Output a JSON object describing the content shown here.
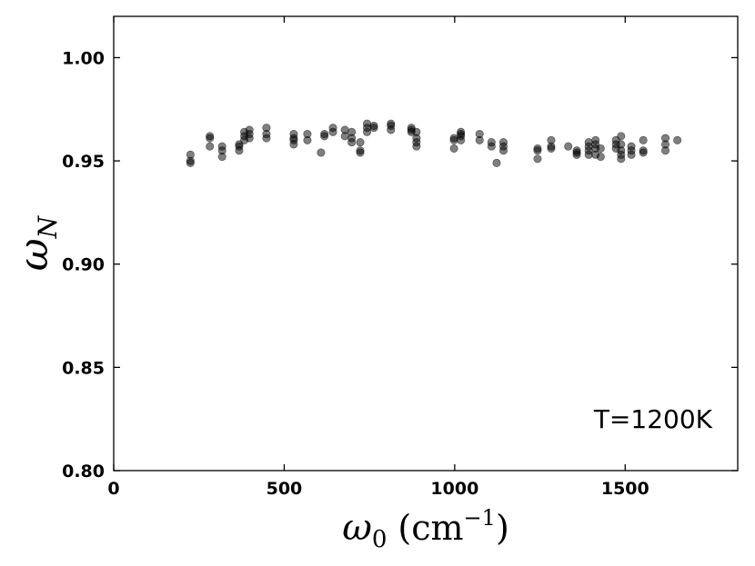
{
  "chart_data": {
    "type": "scatter",
    "title": "",
    "xlabel": "ω₀ (cm⁻¹)",
    "ylabel": "ω_N",
    "xlim": [
      0,
      1830
    ],
    "ylim": [
      0.8,
      1.02
    ],
    "xticks": [
      0,
      500,
      1000,
      1500
    ],
    "yticks": [
      0.8,
      0.85,
      0.9,
      0.95,
      1.0
    ],
    "xtick_labels": [
      "0",
      "500",
      "1000",
      "1500"
    ],
    "ytick_labels": [
      "0.80",
      "0.85",
      "0.90",
      "0.95",
      "1.00"
    ],
    "annotation": "T=1200K",
    "annotation_position": "bottom-right",
    "grid": false,
    "marker_color": "#000000",
    "marker_opacity": 0.5,
    "points": [
      [
        225,
        0.953
      ],
      [
        225,
        0.95
      ],
      [
        225,
        0.949
      ],
      [
        282,
        0.962
      ],
      [
        282,
        0.961
      ],
      [
        282,
        0.957
      ],
      [
        318,
        0.957
      ],
      [
        318,
        0.955
      ],
      [
        318,
        0.952
      ],
      [
        368,
        0.958
      ],
      [
        368,
        0.957
      ],
      [
        368,
        0.955
      ],
      [
        383,
        0.964
      ],
      [
        383,
        0.962
      ],
      [
        383,
        0.96
      ],
      [
        398,
        0.965
      ],
      [
        398,
        0.963
      ],
      [
        398,
        0.961
      ],
      [
        448,
        0.966
      ],
      [
        448,
        0.963
      ],
      [
        448,
        0.961
      ],
      [
        528,
        0.963
      ],
      [
        528,
        0.961
      ],
      [
        528,
        0.96
      ],
      [
        528,
        0.958
      ],
      [
        568,
        0.963
      ],
      [
        568,
        0.96
      ],
      [
        608,
        0.954
      ],
      [
        618,
        0.963
      ],
      [
        618,
        0.962
      ],
      [
        643,
        0.966
      ],
      [
        643,
        0.964
      ],
      [
        678,
        0.965
      ],
      [
        678,
        0.962
      ],
      [
        698,
        0.964
      ],
      [
        698,
        0.961
      ],
      [
        698,
        0.959
      ],
      [
        723,
        0.959
      ],
      [
        723,
        0.955
      ],
      [
        723,
        0.954
      ],
      [
        743,
        0.968
      ],
      [
        743,
        0.966
      ],
      [
        743,
        0.964
      ],
      [
        763,
        0.967
      ],
      [
        763,
        0.966
      ],
      [
        813,
        0.968
      ],
      [
        813,
        0.967
      ],
      [
        813,
        0.965
      ],
      [
        873,
        0.966
      ],
      [
        873,
        0.965
      ],
      [
        873,
        0.964
      ],
      [
        888,
        0.964
      ],
      [
        888,
        0.961
      ],
      [
        888,
        0.959
      ],
      [
        888,
        0.957
      ],
      [
        998,
        0.961
      ],
      [
        998,
        0.96
      ],
      [
        998,
        0.956
      ],
      [
        1018,
        0.964
      ],
      [
        1018,
        0.963
      ],
      [
        1018,
        0.962
      ],
      [
        1018,
        0.96
      ],
      [
        1073,
        0.963
      ],
      [
        1073,
        0.96
      ],
      [
        1108,
        0.959
      ],
      [
        1108,
        0.957
      ],
      [
        1123,
        0.949
      ],
      [
        1143,
        0.959
      ],
      [
        1143,
        0.957
      ],
      [
        1143,
        0.955
      ],
      [
        1243,
        0.956
      ],
      [
        1243,
        0.955
      ],
      [
        1243,
        0.951
      ],
      [
        1283,
        0.96
      ],
      [
        1283,
        0.957
      ],
      [
        1283,
        0.956
      ],
      [
        1333,
        0.957
      ],
      [
        1358,
        0.955
      ],
      [
        1358,
        0.954
      ],
      [
        1358,
        0.953
      ],
      [
        1393,
        0.959
      ],
      [
        1393,
        0.957
      ],
      [
        1393,
        0.955
      ],
      [
        1393,
        0.953
      ],
      [
        1413,
        0.96
      ],
      [
        1413,
        0.958
      ],
      [
        1413,
        0.956
      ],
      [
        1413,
        0.953
      ],
      [
        1428,
        0.956
      ],
      [
        1428,
        0.952
      ],
      [
        1473,
        0.96
      ],
      [
        1473,
        0.958
      ],
      [
        1473,
        0.956
      ],
      [
        1488,
        0.962
      ],
      [
        1488,
        0.958
      ],
      [
        1488,
        0.955
      ],
      [
        1488,
        0.953
      ],
      [
        1488,
        0.951
      ],
      [
        1518,
        0.957
      ],
      [
        1518,
        0.955
      ],
      [
        1518,
        0.953
      ],
      [
        1553,
        0.96
      ],
      [
        1553,
        0.955
      ],
      [
        1553,
        0.954
      ],
      [
        1618,
        0.961
      ],
      [
        1618,
        0.958
      ],
      [
        1618,
        0.955
      ],
      [
        1653,
        0.96
      ]
    ]
  }
}
